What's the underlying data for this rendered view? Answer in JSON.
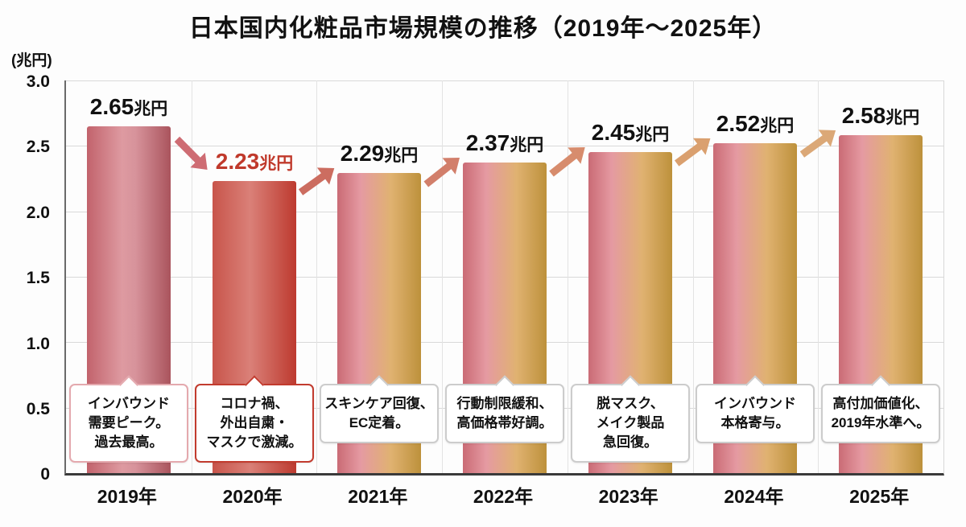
{
  "chart_data": {
    "type": "bar",
    "title": "日本国内化粧品市場規模の推移（2019年〜2025年）",
    "y_unit": "(兆円)",
    "categories": [
      "2019年",
      "2020年",
      "2021年",
      "2022年",
      "2023年",
      "2024年",
      "2025年"
    ],
    "values": [
      2.65,
      2.23,
      2.29,
      2.37,
      2.45,
      2.52,
      2.58
    ],
    "value_labels": [
      "2.65",
      "2.23",
      "2.29",
      "2.37",
      "2.45",
      "2.52",
      "2.58"
    ],
    "unit_suffix": "兆円",
    "ylim": [
      0,
      3.0
    ],
    "ymax": 3.0,
    "ytick_labels": [
      "3.0",
      "2.5",
      "2.0",
      "1.5",
      "1.0",
      "0.5",
      "0"
    ],
    "grid": true,
    "legend": "none",
    "value_colors": [
      "#111111",
      "#c0392b",
      "#111111",
      "#111111",
      "#111111",
      "#111111",
      "#111111"
    ],
    "bar_gradients": [
      [
        "#c2636c 0%",
        "#de9aa1 42%",
        "#d7939b 58%",
        "#aa545d 100%"
      ],
      [
        "#c8554b 0%",
        "#da8078 45%",
        "#bd3a2f 100%"
      ],
      [
        "#ca6b75 0%",
        "#e59aa2 28%",
        "#e0b271 64%",
        "#bd913b 100%"
      ],
      [
        "#ca6b75 0%",
        "#e59aa2 28%",
        "#e0b271 64%",
        "#bd913b 100%"
      ],
      [
        "#ca6b75 0%",
        "#e59aa2 28%",
        "#e0b271 64%",
        "#bd913b 100%"
      ],
      [
        "#ca6b75 0%",
        "#e59aa2 28%",
        "#e0b271 64%",
        "#bd913b 100%"
      ],
      [
        "#ca6b75 0%",
        "#e59aa2 28%",
        "#e0b271 64%",
        "#bd913b 100%"
      ]
    ],
    "arrow_colors": [
      "#ce6c73",
      "#cc6d60",
      "#d27f6b",
      "#d78c6d",
      "#daa06f",
      "#dba877"
    ],
    "arrow_directions": [
      "down",
      "up",
      "up",
      "up",
      "up",
      "up"
    ],
    "annotations": [
      {
        "lines": [
          "インバウンド",
          "需要ピーク。",
          "過去最高。"
        ],
        "border": "#e4a9ae"
      },
      {
        "lines": [
          "コロナ禍、",
          "外出自粛・",
          "マスクで激減。"
        ],
        "border": "#c23b2e"
      },
      {
        "lines": [
          "スキンケア回復、",
          "EC定着。"
        ],
        "border": "#cccccc"
      },
      {
        "lines": [
          "行動制限緩和、",
          "高価格帯好調。"
        ],
        "border": "#cccccc"
      },
      {
        "lines": [
          "脱マスク、",
          "メイク製品",
          "急回復。"
        ],
        "border": "#cccccc"
      },
      {
        "lines": [
          "インバウンド",
          "本格寄与。"
        ],
        "border": "#cccccc"
      },
      {
        "lines": [
          "高付加価値化、",
          "2019年水準へ。"
        ],
        "border": "#cccccc"
      }
    ]
  }
}
